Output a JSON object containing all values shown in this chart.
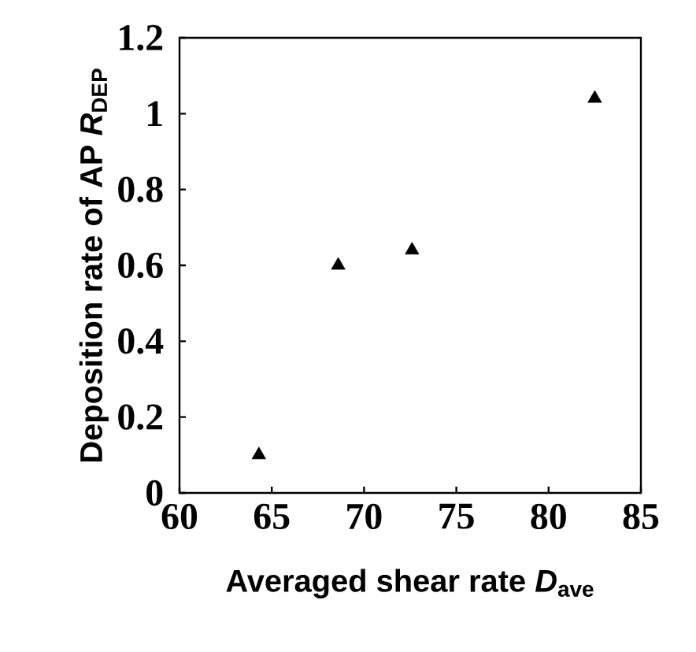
{
  "chart_data": {
    "type": "scatter",
    "xlabel": "Averaged shear rate  *D*$_{ave}$",
    "ylabel": "Deposition rate of AP *R*$_{DEP}$",
    "x": [
      64.3,
      68.6,
      72.6,
      82.5
    ],
    "series": [
      {
        "color": "#000000",
        "values": [
          0.1,
          0.6,
          0.64,
          1.04
        ]
      }
    ],
    "xlim": [
      60,
      85
    ],
    "xticks": [
      60,
      65,
      70,
      75,
      80,
      85
    ],
    "ylim": [
      0,
      1.2
    ],
    "yticks": [
      0,
      0.2,
      0.4,
      0.6,
      0.8,
      1,
      1.2
    ],
    "marker": "triangle",
    "grid": false
  }
}
